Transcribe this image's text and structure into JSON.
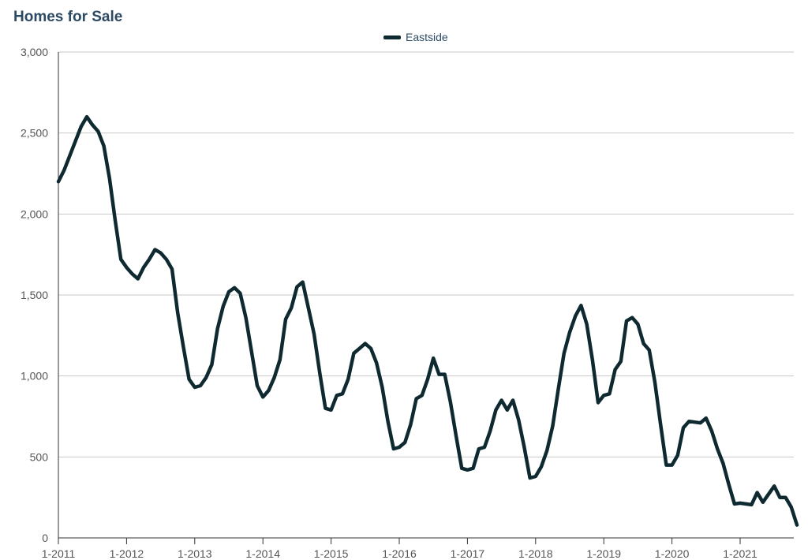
{
  "chart_data": {
    "type": "line",
    "title": "Homes for Sale",
    "xlabel": "",
    "ylabel": "",
    "ylim": [
      0,
      3000
    ],
    "yticks": [
      0,
      500,
      1000,
      1500,
      2000,
      2500,
      3000
    ],
    "ytick_labels": [
      "0",
      "500",
      "1,000",
      "1,500",
      "2,000",
      "2,500",
      "3,000"
    ],
    "xticks": [
      "1-2011",
      "1-2012",
      "1-2013",
      "1-2014",
      "1-2015",
      "1-2016",
      "1-2017",
      "1-2018",
      "1-2019",
      "1-2020",
      "1-2021"
    ],
    "grid": true,
    "legend_position": "top-center",
    "colors": {
      "line": "#0e2a30",
      "grid": "#c8c8c8",
      "axis": "#333333",
      "title": "#2c4a63"
    },
    "series": [
      {
        "name": "Eastside",
        "x": [
          "2011-01",
          "2011-02",
          "2011-03",
          "2011-04",
          "2011-05",
          "2011-06",
          "2011-07",
          "2011-08",
          "2011-09",
          "2011-10",
          "2011-11",
          "2011-12",
          "2012-01",
          "2012-02",
          "2012-03",
          "2012-04",
          "2012-05",
          "2012-06",
          "2012-07",
          "2012-08",
          "2012-09",
          "2012-10",
          "2012-11",
          "2012-12",
          "2013-01",
          "2013-02",
          "2013-03",
          "2013-04",
          "2013-05",
          "2013-06",
          "2013-07",
          "2013-08",
          "2013-09",
          "2013-10",
          "2013-11",
          "2013-12",
          "2014-01",
          "2014-02",
          "2014-03",
          "2014-04",
          "2014-05",
          "2014-06",
          "2014-07",
          "2014-08",
          "2014-09",
          "2014-10",
          "2014-11",
          "2014-12",
          "2015-01",
          "2015-02",
          "2015-03",
          "2015-04",
          "2015-05",
          "2015-06",
          "2015-07",
          "2015-08",
          "2015-09",
          "2015-10",
          "2015-11",
          "2015-12",
          "2016-01",
          "2016-02",
          "2016-03",
          "2016-04",
          "2016-05",
          "2016-06",
          "2016-07",
          "2016-08",
          "2016-09",
          "2016-10",
          "2016-11",
          "2016-12",
          "2017-01",
          "2017-02",
          "2017-03",
          "2017-04",
          "2017-05",
          "2017-06",
          "2017-07",
          "2017-08",
          "2017-09",
          "2017-10",
          "2017-11",
          "2017-12",
          "2018-01",
          "2018-02",
          "2018-03",
          "2018-04",
          "2018-05",
          "2018-06",
          "2018-07",
          "2018-08",
          "2018-09",
          "2018-10",
          "2018-11",
          "2018-12",
          "2019-01",
          "2019-02",
          "2019-03",
          "2019-04",
          "2019-05",
          "2019-06",
          "2019-07",
          "2019-08",
          "2019-09",
          "2019-10",
          "2019-11",
          "2019-12",
          "2020-01",
          "2020-02",
          "2020-03",
          "2020-04",
          "2020-05",
          "2020-06",
          "2020-07",
          "2020-08",
          "2020-09",
          "2020-10",
          "2020-11",
          "2020-12",
          "2021-01",
          "2021-02",
          "2021-03",
          "2021-04",
          "2021-05",
          "2021-06",
          "2021-07",
          "2021-08",
          "2021-09",
          "2021-10",
          "2021-11"
        ],
        "values": [
          2200,
          2270,
          2360,
          2450,
          2540,
          2600,
          2550,
          2510,
          2420,
          2220,
          1960,
          1720,
          1670,
          1630,
          1600,
          1670,
          1720,
          1780,
          1760,
          1720,
          1660,
          1390,
          1180,
          980,
          930,
          940,
          990,
          1070,
          1290,
          1430,
          1520,
          1545,
          1510,
          1360,
          1150,
          940,
          870,
          910,
          990,
          1100,
          1350,
          1420,
          1550,
          1580,
          1420,
          1260,
          1020,
          800,
          790,
          880,
          890,
          980,
          1140,
          1170,
          1200,
          1170,
          1080,
          930,
          720,
          550,
          560,
          590,
          700,
          860,
          880,
          980,
          1110,
          1010,
          1010,
          840,
          630,
          430,
          420,
          430,
          550,
          560,
          660,
          790,
          850,
          790,
          850,
          730,
          560,
          370,
          380,
          440,
          540,
          690,
          920,
          1140,
          1270,
          1370,
          1435,
          1320,
          1100,
          835,
          880,
          890,
          1040,
          1090,
          1340,
          1360,
          1320,
          1200,
          1160,
          960,
          700,
          450,
          450,
          510,
          680,
          720,
          715,
          710,
          740,
          660,
          550,
          460,
          330,
          210,
          215,
          210,
          205,
          280,
          220,
          270,
          320,
          250,
          250,
          190,
          80
        ]
      }
    ]
  }
}
